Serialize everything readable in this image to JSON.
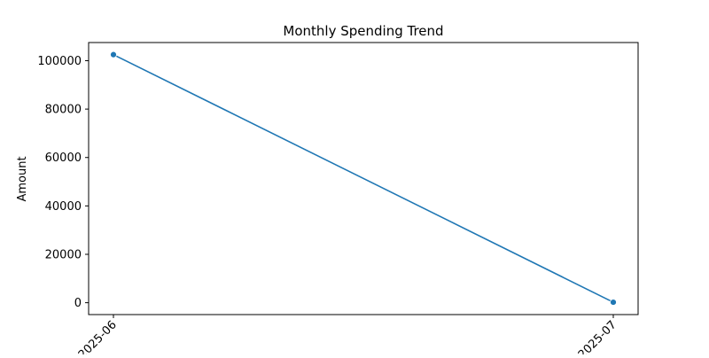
{
  "chart_data": {
    "type": "line",
    "title": "Monthly Spending Trend",
    "xlabel": "",
    "ylabel": "Amount",
    "x": [
      "2025-06",
      "2025-07"
    ],
    "series": [
      {
        "values": [
          102500,
          200
        ],
        "color": "#1f77b4"
      }
    ],
    "ylim": [
      -4900,
      107500
    ],
    "yticks": [
      0,
      20000,
      40000,
      60000,
      80000,
      100000
    ],
    "ytick_labels": [
      "0",
      "20000",
      "40000",
      "60000",
      "80000",
      "100000"
    ],
    "grid": false,
    "legend": "none",
    "marker": "circle"
  }
}
